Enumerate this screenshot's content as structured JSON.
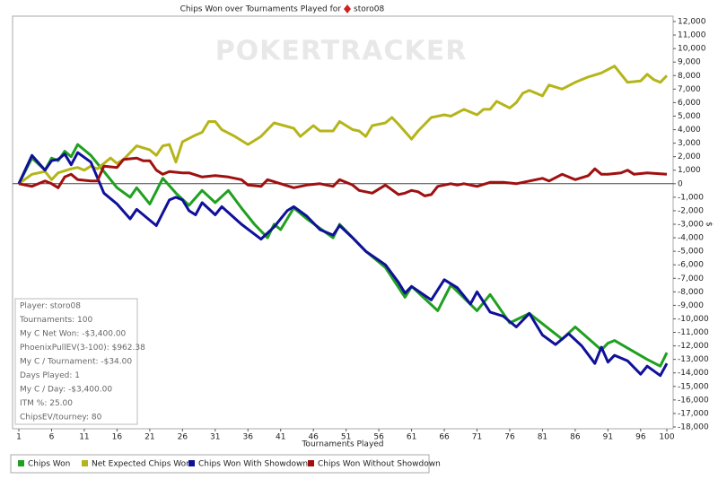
{
  "chart_data": {
    "type": "line",
    "title": "Chips Won over Tournaments Played for",
    "title_player": "storo08",
    "watermark": "POKERTRACKER",
    "x_label": "Tournaments Played",
    "y_label": "$",
    "xlim": [
      1,
      100
    ],
    "xticks": [
      1,
      6,
      11,
      16,
      21,
      26,
      31,
      36,
      41,
      46,
      51,
      56,
      61,
      66,
      71,
      76,
      81,
      86,
      91,
      96,
      100
    ],
    "ylim": [
      -18000,
      12000
    ],
    "yticks": [
      {
        "value": -18000,
        "label": "-18,000"
      },
      {
        "value": -17000,
        "label": "-17,000"
      },
      {
        "value": -16000,
        "label": "-16,000"
      },
      {
        "value": -15000,
        "label": "-15,000"
      },
      {
        "value": -14000,
        "label": "-14,000"
      },
      {
        "value": -13000,
        "label": "-13,000"
      },
      {
        "value": -12000,
        "label": "-12,000"
      },
      {
        "value": -11000,
        "label": "-11,000"
      },
      {
        "value": -10000,
        "label": "-10,000"
      },
      {
        "value": -9000,
        "label": "-9,000"
      },
      {
        "value": -8000,
        "label": "-8,000"
      },
      {
        "value": -7000,
        "label": "-7,000"
      },
      {
        "value": -6000,
        "label": "-6,000"
      },
      {
        "value": -5000,
        "label": "-5,000"
      },
      {
        "value": -4000,
        "label": "-4,000"
      },
      {
        "value": -3000,
        "label": "-3,000"
      },
      {
        "value": -2000,
        "label": "-2,000"
      },
      {
        "value": -1000,
        "label": "-1,000"
      },
      0,
      {
        "value": 1000,
        "label": "1,000"
      },
      {
        "value": 2000,
        "label": "2,000"
      },
      {
        "value": 3000,
        "label": "3,000"
      },
      {
        "value": 4000,
        "label": "4,000"
      },
      {
        "value": 5000,
        "label": "5,000"
      },
      {
        "value": 6000,
        "label": "6,000"
      },
      {
        "value": 7000,
        "label": "7,000"
      },
      {
        "value": 8000,
        "label": "8,000"
      },
      {
        "value": 9000,
        "label": "9,000"
      },
      {
        "value": 10000,
        "label": "10,000"
      },
      {
        "value": 11000,
        "label": "11,000"
      },
      {
        "value": 12000,
        "label": "12,000"
      }
    ],
    "grid": false,
    "zero_line": true,
    "series": [
      {
        "name": "Chips Won",
        "color": "#1fa01f",
        "x": [
          1,
          3,
          5,
          6,
          7,
          8,
          9,
          10,
          12,
          14,
          16,
          18,
          19,
          21,
          23,
          25,
          27,
          29,
          31,
          33,
          35,
          37,
          39,
          40,
          41,
          43,
          45,
          47,
          49,
          50,
          52,
          54,
          57,
          60,
          61,
          65,
          67,
          71,
          73,
          76,
          79,
          84,
          86,
          90,
          91,
          92,
          97,
          99,
          100
        ],
        "values": [
          0,
          1900,
          1000,
          1900,
          1700,
          2400,
          2000,
          2900,
          2100,
          900,
          -300,
          -1000,
          -300,
          -1500,
          400,
          -700,
          -1600,
          -500,
          -1400,
          -500,
          -1800,
          -3000,
          -4000,
          -3000,
          -3400,
          -1800,
          -2600,
          -3300,
          -4000,
          -3000,
          -4000,
          -5000,
          -6200,
          -8400,
          -7600,
          -9400,
          -7500,
          -9400,
          -8200,
          -10300,
          -9600,
          -11500,
          -10600,
          -12300,
          -11800,
          -11600,
          -13000,
          -13500,
          -12500
        ]
      },
      {
        "name": "Net Expected Chips Won",
        "color": "#b5b51a",
        "x": [
          1,
          3,
          5,
          6,
          7,
          9,
          10,
          11,
          12,
          13,
          15,
          16,
          17,
          19,
          21,
          22,
          23,
          24,
          25,
          26,
          28,
          29,
          30,
          31,
          32,
          34,
          36,
          38,
          40,
          43,
          44,
          46,
          47,
          49,
          50,
          52,
          53,
          54,
          55,
          57,
          58,
          59,
          61,
          62,
          64,
          66,
          67,
          69,
          71,
          72,
          73,
          74,
          76,
          77,
          78,
          79,
          81,
          82,
          84,
          86,
          88,
          90,
          92,
          94,
          96,
          97,
          98,
          99,
          100
        ],
        "values": [
          0,
          700,
          900,
          300,
          800,
          1100,
          1200,
          1000,
          1300,
          1100,
          1900,
          1500,
          1800,
          2800,
          2500,
          2100,
          2800,
          2900,
          1600,
          3100,
          3600,
          3800,
          4600,
          4600,
          4000,
          3500,
          2900,
          3500,
          4500,
          4100,
          3500,
          4300,
          3900,
          3900,
          4600,
          4000,
          3900,
          3500,
          4300,
          4500,
          4900,
          4400,
          3300,
          3900,
          4900,
          5100,
          5000,
          5500,
          5100,
          5500,
          5500,
          6100,
          5600,
          6000,
          6700,
          6900,
          6500,
          7300,
          7000,
          7500,
          7900,
          8200,
          8700,
          7500,
          7600,
          8100,
          7700,
          7500,
          8000
        ]
      },
      {
        "name": "Chips Won With Showdown",
        "color": "#10109a",
        "x": [
          1,
          3,
          5,
          6,
          7,
          8,
          9,
          10,
          12,
          14,
          16,
          18,
          19,
          21,
          22,
          24,
          25,
          26,
          27,
          28,
          29,
          31,
          32,
          35,
          38,
          40,
          42,
          43,
          45,
          47,
          49,
          50,
          52,
          54,
          57,
          59,
          60,
          61,
          64,
          66,
          68,
          70,
          71,
          73,
          75,
          77,
          79,
          81,
          83,
          85,
          87,
          89,
          90,
          91,
          92,
          94,
          96,
          97,
          99,
          100
        ],
        "values": [
          0,
          2100,
          1000,
          1700,
          1800,
          2200,
          1400,
          2300,
          1600,
          -700,
          -1500,
          -2600,
          -1900,
          -2700,
          -3100,
          -1200,
          -1000,
          -1200,
          -2000,
          -2300,
          -1400,
          -2300,
          -1700,
          -3000,
          -4100,
          -3200,
          -2000,
          -1700,
          -2400,
          -3400,
          -3800,
          -3100,
          -4000,
          -5000,
          -6000,
          -7300,
          -8100,
          -7600,
          -8600,
          -7100,
          -7700,
          -8900,
          -8000,
          -9500,
          -9800,
          -10600,
          -9600,
          -11200,
          -11900,
          -11100,
          -12000,
          -13300,
          -12100,
          -13200,
          -12700,
          -13100,
          -14100,
          -13500,
          -14200,
          -13300
        ]
      },
      {
        "name": "Chips Won Without Showdown",
        "color": "#a01010",
        "x": [
          1,
          3,
          5,
          6,
          7,
          8,
          9,
          10,
          12,
          13,
          14,
          16,
          17,
          19,
          20,
          21,
          22,
          23,
          24,
          26,
          27,
          29,
          31,
          33,
          35,
          36,
          38,
          39,
          41,
          43,
          45,
          47,
          49,
          50,
          52,
          53,
          55,
          57,
          59,
          60,
          61,
          62,
          63,
          64,
          65,
          67,
          68,
          69,
          71,
          73,
          75,
          77,
          79,
          81,
          82,
          84,
          86,
          88,
          89,
          90,
          91,
          93,
          94,
          95,
          97,
          100
        ],
        "values": [
          0,
          -200,
          200,
          0,
          -300,
          500,
          700,
          300,
          200,
          200,
          1300,
          1200,
          1800,
          1900,
          1700,
          1700,
          1000,
          700,
          900,
          800,
          800,
          500,
          600,
          500,
          300,
          -100,
          -200,
          300,
          0,
          -300,
          -100,
          0,
          -200,
          300,
          -100,
          -500,
          -700,
          -100,
          -800,
          -700,
          -500,
          -600,
          -900,
          -800,
          -200,
          0,
          -100,
          0,
          -200,
          100,
          100,
          0,
          200,
          400,
          200,
          700,
          300,
          600,
          1100,
          700,
          700,
          800,
          1000,
          700,
          800,
          700
        ]
      }
    ],
    "info_box": [
      "Player: storo08",
      "Tournaments: 100",
      "My C Net Won: -$3,400.00",
      "PhoenixPullEV(3-100): $962.38",
      "My C / Tournament: -$34.00",
      "Days Played: 1",
      "My C / Day: -$3,400.00",
      "ITM %: 25.00",
      "ChipsEV/tourney: 80"
    ]
  }
}
